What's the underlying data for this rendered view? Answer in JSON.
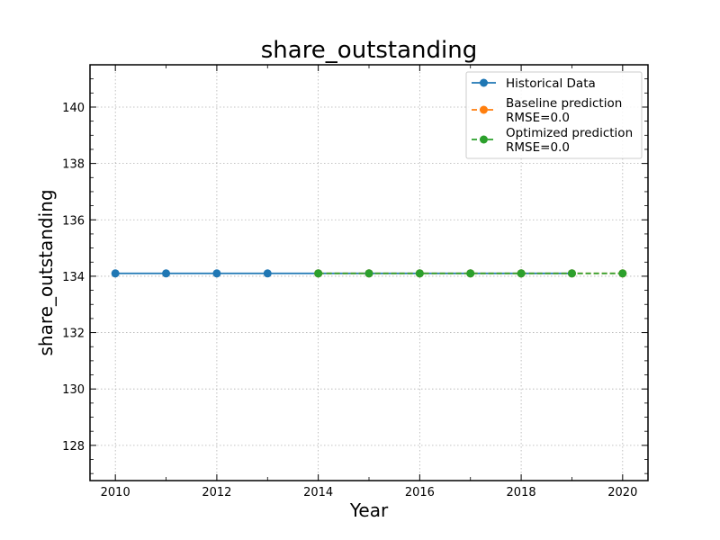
{
  "chart_data": {
    "type": "line",
    "title": "share_outstanding",
    "xlabel": "Year",
    "ylabel": "share_outstanding",
    "xlim": [
      2009.5,
      2020.5
    ],
    "ylim": [
      126.75,
      141.5
    ],
    "xticks": [
      2010,
      2012,
      2014,
      2016,
      2018,
      2020
    ],
    "yticks": [
      128,
      130,
      132,
      134,
      136,
      138,
      140
    ],
    "grid": true,
    "legend_position": "top-right",
    "series": [
      {
        "name": "Historical Data",
        "color": "#1f77b4",
        "line_style": "solid",
        "marker": "circle",
        "x": [
          2010,
          2011,
          2012,
          2013,
          2014,
          2015,
          2016,
          2017,
          2018,
          2019
        ],
        "y": [
          134.1,
          134.1,
          134.1,
          134.1,
          134.1,
          134.1,
          134.1,
          134.1,
          134.1,
          134.1
        ]
      },
      {
        "name": "Baseline prediction",
        "name_line2": "RMSE=0.0",
        "color": "#ff7f0e",
        "line_style": "dashed",
        "marker": "circle",
        "x": [
          2014,
          2015,
          2016,
          2017,
          2018,
          2019,
          2020
        ],
        "y": [
          134.1,
          134.1,
          134.1,
          134.1,
          134.1,
          134.1,
          134.1
        ]
      },
      {
        "name": "Optimized prediction",
        "name_line2": "RMSE=0.0",
        "color": "#2ca02c",
        "line_style": "dashed",
        "marker": "circle",
        "x": [
          2014,
          2015,
          2016,
          2017,
          2018,
          2019,
          2020
        ],
        "y": [
          134.1,
          134.1,
          134.1,
          134.1,
          134.1,
          134.1,
          134.1
        ]
      }
    ]
  }
}
